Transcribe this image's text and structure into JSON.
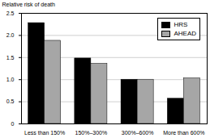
{
  "chart_data": {
    "type": "bar",
    "ylabel": "Relative risk of death",
    "categories": [
      "Less than 150%",
      "150%–300%",
      "300%–600%",
      "More than 600%"
    ],
    "series": [
      {
        "name": "HRS",
        "color": "#000000",
        "values": [
          2.28,
          1.48,
          1.0,
          0.57
        ]
      },
      {
        "name": "AHEAD",
        "color": "#a6a6a6",
        "values": [
          1.88,
          1.36,
          1.0,
          1.03
        ]
      }
    ],
    "ylim": [
      0,
      2.5
    ],
    "yticks": [
      0,
      0.5,
      {
        "value": 1,
        "label": "1.0"
      },
      1.5,
      {
        "value": 2,
        "label": "2.0"
      },
      2.5
    ],
    "grid": true,
    "legend": "top-right"
  }
}
